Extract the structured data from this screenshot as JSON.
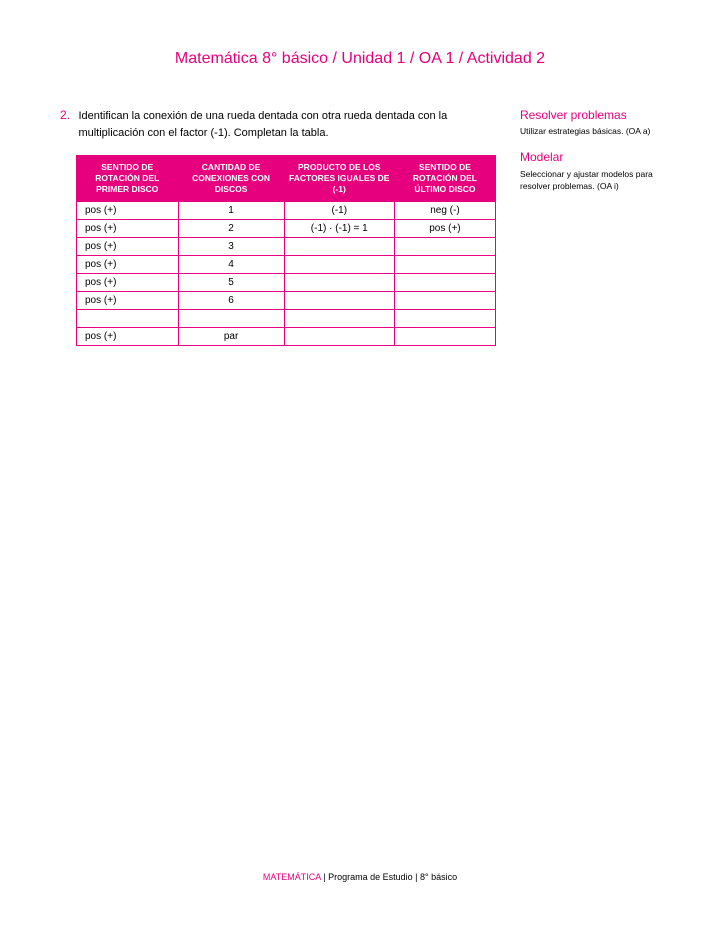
{
  "page": {
    "title": "Matemática 8° básico / Unidad 1 / OA 1 / Actividad 2"
  },
  "activity": {
    "number": "2.",
    "prompt": "Identifican la conexión de una rueda dentada con otra rueda dentada con la multiplicación con el factor (-1). Completan la tabla."
  },
  "table": {
    "headers": [
      "SENTIDO DE ROTACIÓN DEL PRIMER DISCO",
      "CANTIDAD DE CONEXIONES CON DISCOS",
      "PRODUCTO DE LOS FACTORES IGUALES DE (-1)",
      "SENTIDO DE ROTACIÓN DEL ÚLTIMO DISCO"
    ],
    "rows": [
      {
        "c0": "pos (+)",
        "c1": "1",
        "c2": "(-1)",
        "c3": "neg (-)"
      },
      {
        "c0": "pos (+)",
        "c1": "2",
        "c2": "(-1) · (-1) = 1",
        "c3": "pos (+)"
      },
      {
        "c0": "pos (+)",
        "c1": "3",
        "c2": "",
        "c3": ""
      },
      {
        "c0": "pos (+)",
        "c1": "4",
        "c2": "",
        "c3": ""
      },
      {
        "c0": "pos (+)",
        "c1": "5",
        "c2": "",
        "c3": ""
      },
      {
        "c0": "pos (+)",
        "c1": "6",
        "c2": "",
        "c3": ""
      },
      {
        "c0": "",
        "c1": "",
        "c2": "",
        "c3": ""
      },
      {
        "c0": "pos (+)",
        "c1": "par",
        "c2": "",
        "c3": ""
      }
    ],
    "colors": {
      "header_bg": "#e6007e",
      "header_text": "#ffffff",
      "border": "#e6007e",
      "cell_text": "#000000"
    }
  },
  "sidebar": {
    "blocks": [
      {
        "heading": "Resolver problemas",
        "text": "Utilizar estrategias básicas. (OA a)"
      },
      {
        "heading": "Modelar",
        "text": "Seleccionar y ajustar modelos para resolver problemas. (OA i)"
      }
    ]
  },
  "footer": {
    "brand": "MATEMÁTICA",
    "sep1": "   |   ",
    "middle": "Programa de Estudio",
    "sep2": "   |   ",
    "grade": "8° básico"
  }
}
